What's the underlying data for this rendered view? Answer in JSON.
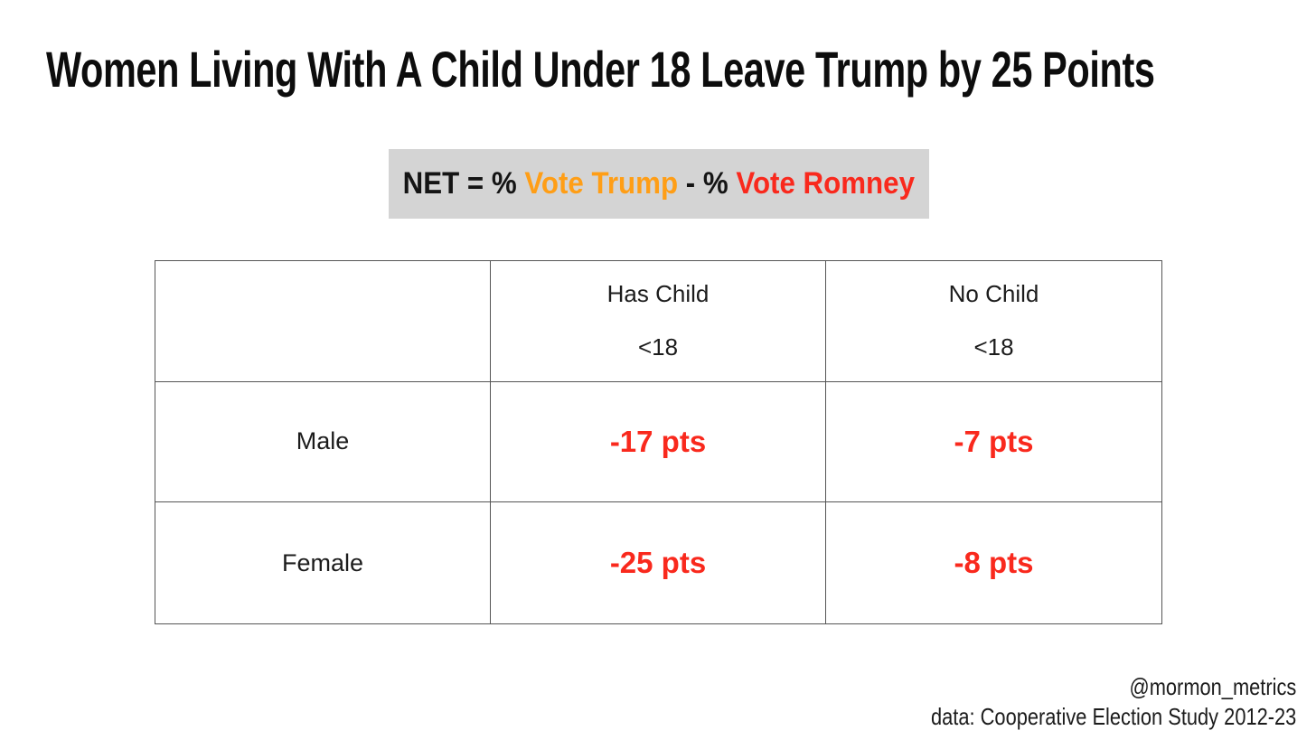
{
  "title": "Women Living With A Child Under 18 Leave Trump by 25 Points",
  "formula": {
    "prefix": "NET = % ",
    "trump_label": "Vote Trump",
    "middle": " - % ",
    "romney_label": "Vote Romney"
  },
  "table": {
    "col_headers": [
      {
        "line1": "Has Child",
        "line2": "<18"
      },
      {
        "line1": "No Child",
        "line2": "<18"
      }
    ],
    "rows": [
      {
        "label": "Male",
        "has_child": "-17 pts",
        "no_child": "-7 pts"
      },
      {
        "label": "Female",
        "has_child": "-25 pts",
        "no_child": "-8 pts"
      }
    ]
  },
  "footer": {
    "credit": "@mormon_metrics",
    "source": "data: Cooperative Election Study 2012-23"
  },
  "colors": {
    "trump_orange": "#ff9e16",
    "romney_red": "#f9291d",
    "value_red": "#f9291d",
    "formula_bg": "#d4d4d4",
    "table_border": "#555555"
  },
  "chart_data": {
    "type": "table",
    "title": "Women Living With A Child Under 18 Leave Trump by 25 Points",
    "note": "NET = % Vote Trump - % Vote Romney",
    "columns": [
      "",
      "Has Child <18",
      "No Child <18"
    ],
    "rows": [
      {
        "label": "Male",
        "values": [
          "-17 pts",
          "-7 pts"
        ]
      },
      {
        "label": "Female",
        "values": [
          "-25 pts",
          "-8 pts"
        ]
      }
    ],
    "values_numeric": {
      "Male": {
        "Has Child <18": -17,
        "No Child <18": -7
      },
      "Female": {
        "Has Child <18": -25,
        "No Child <18": -8
      }
    },
    "credit": "@mormon_metrics",
    "source": "data: Cooperative Election Study 2012-23"
  }
}
